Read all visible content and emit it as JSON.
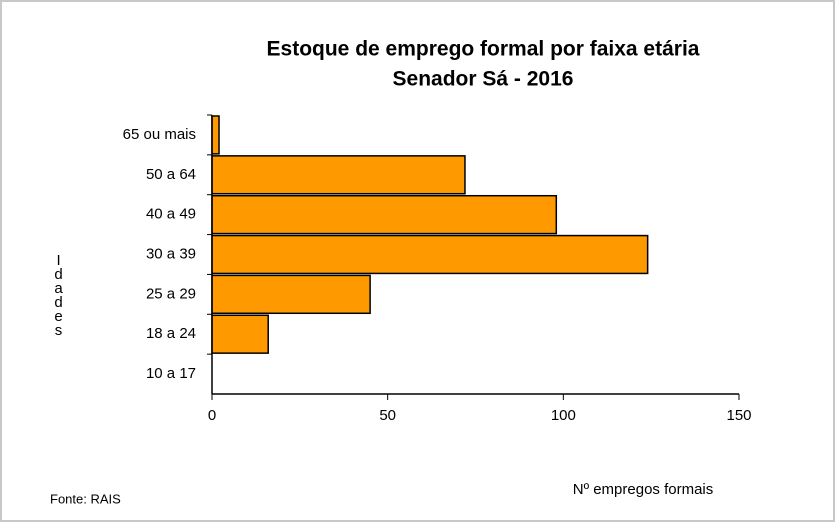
{
  "chart_data": {
    "type": "bar",
    "orientation": "horizontal",
    "title": "Estoque de emprego formal por faixa etária",
    "subtitle": "Senador Sá - 2016",
    "categories": [
      "65 ou mais",
      "50 a 64",
      "40 a 49",
      "30 a 39",
      "25 a 29",
      "18 a 24",
      "10 a 17"
    ],
    "values": [
      2,
      72,
      98,
      124,
      45,
      16,
      0
    ],
    "color": "#ff9900",
    "xlim": [
      0,
      150
    ],
    "xticks": [
      0,
      50,
      100,
      150
    ],
    "x_label": "Nº empregos formais",
    "y_label": "Idades",
    "source": "Fonte: RAIS"
  }
}
